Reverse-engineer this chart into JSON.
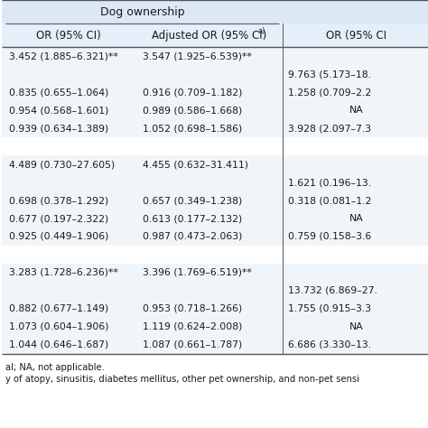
{
  "title_header": "Dog ownership",
  "col1_header": "OR (95% CI)",
  "col2_header": "Adjusted OR (95% CI)",
  "col2_header_sup": "a)",
  "col3_header": "OR (95% CI",
  "rows": [
    {
      "col1": "3.452 (1.885–6.321)**",
      "col2": "3.547 (1.925–6.539)**",
      "col3": ""
    },
    {
      "col1": "",
      "col2": "",
      "col3": "9.763 (5.173–18."
    },
    {
      "col1": "0.835 (0.655–1.064)",
      "col2": "0.916 (0.709–1.182)",
      "col3": "1.258 (0.709–2.2"
    },
    {
      "col1": "0.954 (0.568–1.601)",
      "col2": "0.989 (0.586–1.668)",
      "col3": "NA"
    },
    {
      "col1": "0.939 (0.634–1.389)",
      "col2": "1.052 (0.698–1.586)",
      "col3": "3.928 (2.097–7.3"
    },
    {
      "col1": "",
      "col2": "",
      "col3": ""
    },
    {
      "col1": "4.489 (0.730–27.605)",
      "col2": "4.455 (0.632–31.411)",
      "col3": ""
    },
    {
      "col1": "",
      "col2": "",
      "col3": "1.621 (0.196–13."
    },
    {
      "col1": "0.698 (0.378–1.292)",
      "col2": "0.657 (0.349–1.238)",
      "col3": "0.318 (0.081–1.2"
    },
    {
      "col1": "0.677 (0.197–2.322)",
      "col2": "0.613 (0.177–2.132)",
      "col3": "NA"
    },
    {
      "col1": "0.925 (0.449–1.906)",
      "col2": "0.987 (0.473–2.063)",
      "col3": "0.759 (0.158–3.6"
    },
    {
      "col1": "",
      "col2": "",
      "col3": ""
    },
    {
      "col1": "3.283 (1.728–6.236)**",
      "col2": "3.396 (1.769–6.519)**",
      "col3": ""
    },
    {
      "col1": "",
      "col2": "",
      "col3": "13.732 (6.869–27."
    },
    {
      "col1": "0.882 (0.677–1.149)",
      "col2": "0.953 (0.718–1.266)",
      "col3": "1.755 (0.915–3.3"
    },
    {
      "col1": "1.073 (0.604–1.906)",
      "col2": "1.119 (0.624–2.008)",
      "col3": "NA"
    },
    {
      "col1": "1.044 (0.646–1.687)",
      "col2": "1.087 (0.661–1.787)",
      "col3": "6.686 (3.330–13."
    }
  ],
  "footnote1": "al; NA, not applicable.",
  "footnote2": "y of atopy, sinusitis, diabetes mellitus, other pet ownership, and non-pet sensi",
  "bg_header": "#dce9f5",
  "bg_col_header": "#e4eff9",
  "bg_row_light": "#f0f5fa",
  "bg_white": "#ffffff",
  "text_color": "#1a1a1a",
  "line_color": "#888888",
  "divider_color": "#666666"
}
